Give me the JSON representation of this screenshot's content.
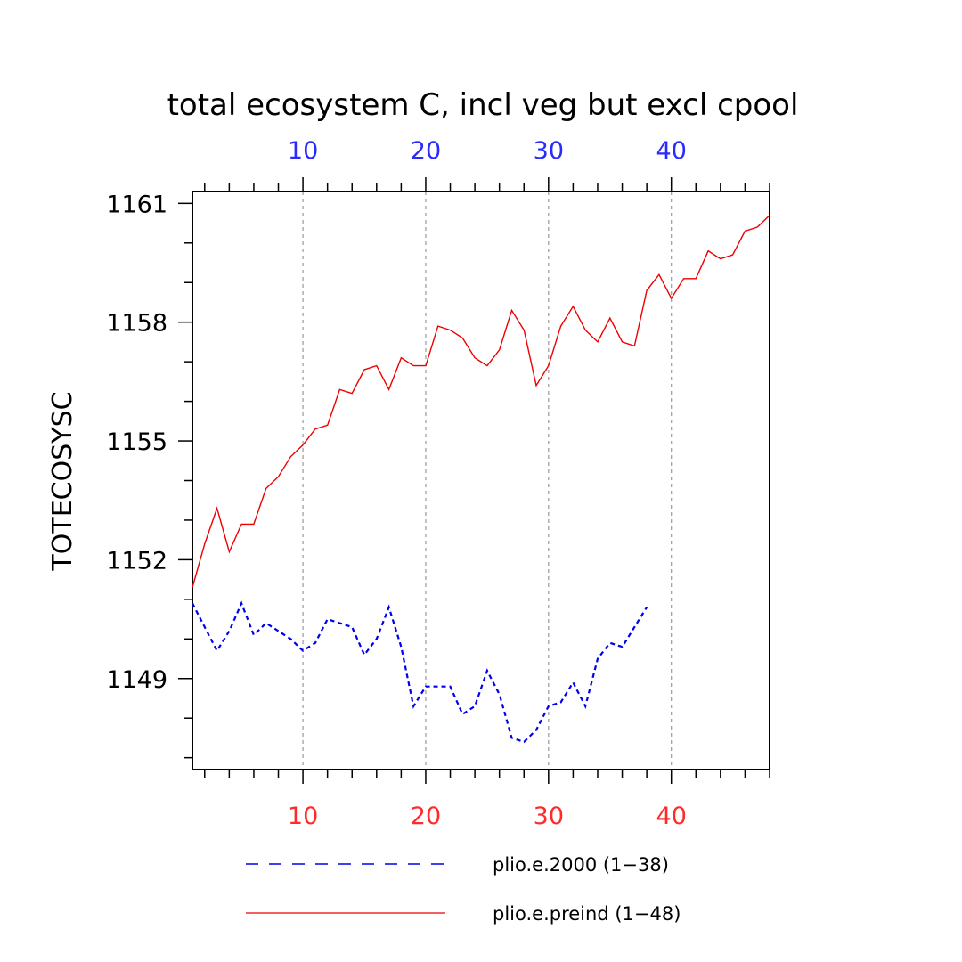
{
  "chart_data": {
    "type": "line",
    "title": "total ecosystem C, incl veg but excl cpool",
    "ylabel": "TOTECOSYSC",
    "xlabel": "",
    "xlim": [
      1,
      48
    ],
    "ylim": [
      1146.7,
      1161.3
    ],
    "y_ticks": [
      1149,
      1152,
      1155,
      1158,
      1161
    ],
    "y_minor_step": 1,
    "x_ticks": [
      10,
      20,
      30,
      40
    ],
    "x_minor_step": 2,
    "x_tick_labels": [
      "10",
      "20",
      "30",
      "40"
    ],
    "x_tick_color_bottom": "#ff2a2a",
    "x_tick_color_top": "#2a2aff",
    "grid": "vertical dashed at major x ticks",
    "legend_position": "bottom",
    "series": [
      {
        "name": "plio.e.2000 (1−38)",
        "color": "#0000ee",
        "style": "dashed",
        "x": [
          1,
          2,
          3,
          4,
          5,
          6,
          7,
          8,
          9,
          10,
          11,
          12,
          13,
          14,
          15,
          16,
          17,
          18,
          19,
          20,
          21,
          22,
          23,
          24,
          25,
          26,
          27,
          28,
          29,
          30,
          31,
          32,
          33,
          34,
          35,
          36,
          37,
          38
        ],
        "values": [
          1150.9,
          1150.3,
          1149.7,
          1150.2,
          1150.9,
          1150.1,
          1150.4,
          1150.2,
          1150.0,
          1149.7,
          1149.9,
          1150.5,
          1150.4,
          1150.3,
          1149.6,
          1150.0,
          1150.8,
          1149.8,
          1148.3,
          1148.8,
          1148.8,
          1148.8,
          1148.1,
          1148.3,
          1149.2,
          1148.6,
          1147.5,
          1147.4,
          1147.7,
          1148.3,
          1148.4,
          1148.9,
          1148.3,
          1149.5,
          1149.9,
          1149.8,
          1150.3,
          1150.8
        ]
      },
      {
        "name": "plio.e.preind (1−48)",
        "color": "#ee0000",
        "style": "solid",
        "x": [
          1,
          2,
          3,
          4,
          5,
          6,
          7,
          8,
          9,
          10,
          11,
          12,
          13,
          14,
          15,
          16,
          17,
          18,
          19,
          20,
          21,
          22,
          23,
          24,
          25,
          26,
          27,
          28,
          29,
          30,
          31,
          32,
          33,
          34,
          35,
          36,
          37,
          38,
          39,
          40,
          41,
          42,
          43,
          44,
          45,
          46,
          47,
          48
        ],
        "values": [
          1151.3,
          1152.4,
          1153.3,
          1152.2,
          1152.9,
          1152.9,
          1153.8,
          1154.1,
          1154.6,
          1154.9,
          1155.3,
          1155.4,
          1156.3,
          1156.2,
          1156.8,
          1156.9,
          1156.3,
          1157.1,
          1156.9,
          1156.9,
          1157.9,
          1157.8,
          1157.6,
          1157.1,
          1156.9,
          1157.3,
          1158.3,
          1157.8,
          1156.4,
          1156.9,
          1157.9,
          1158.4,
          1157.8,
          1157.5,
          1158.1,
          1157.5,
          1157.4,
          1158.8,
          1159.2,
          1158.6,
          1159.1,
          1159.1,
          1159.8,
          1159.6,
          1159.7,
          1160.3,
          1160.4,
          1160.7
        ]
      }
    ]
  }
}
